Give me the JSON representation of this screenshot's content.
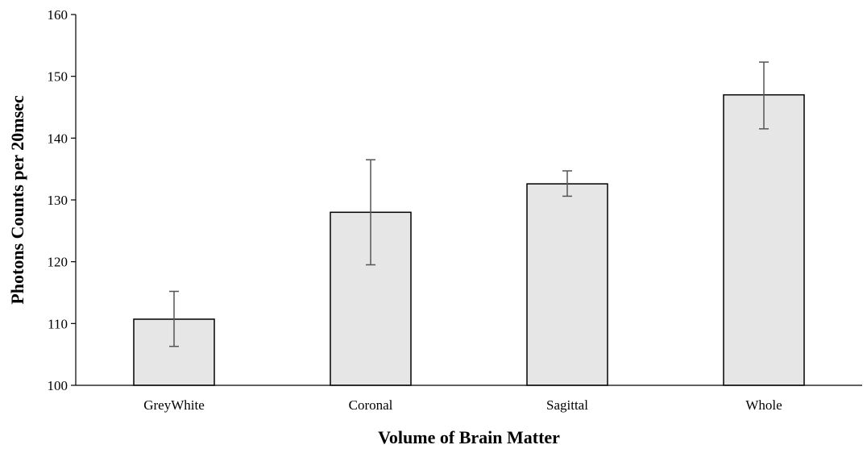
{
  "chart_data": {
    "type": "bar",
    "categories": [
      "GreyWhite",
      "Coronal",
      "Sagittal",
      "Whole"
    ],
    "values": [
      110.7,
      128.0,
      132.6,
      147.0
    ],
    "error_bars": [
      {
        "low": 106.3,
        "high": 115.2
      },
      {
        "low": 119.5,
        "high": 136.5
      },
      {
        "low": 130.6,
        "high": 134.7
      },
      {
        "low": 141.5,
        "high": 152.3
      }
    ],
    "xlabel": "Volume of Brain Matter",
    "ylabel": "Photons Counts per 20msec",
    "ylim": [
      100,
      160
    ],
    "yticks": [
      "100",
      "110",
      "120",
      "130",
      "140",
      "150",
      "160"
    ],
    "grid": false,
    "colors": {
      "bar_fill": "#e6e6e6",
      "bar_stroke": "#000000",
      "error_bar": "#555555",
      "axis": "#000000"
    }
  }
}
